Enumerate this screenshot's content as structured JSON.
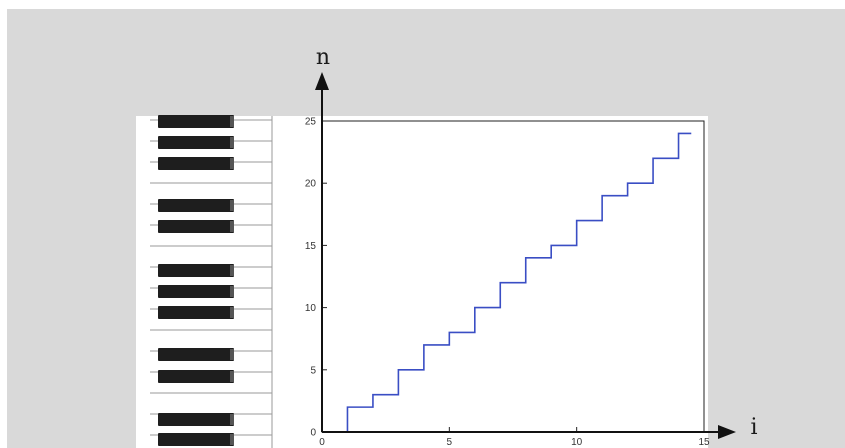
{
  "chart_data": {
    "type": "line",
    "step": true,
    "x": [
      1,
      2,
      3,
      4,
      5,
      6,
      7,
      8,
      9,
      10,
      11,
      12,
      13,
      14
    ],
    "y": [
      2,
      3,
      5,
      7,
      8,
      10,
      12,
      14,
      15,
      17,
      19,
      20,
      22,
      24
    ],
    "xlim": [
      0,
      15
    ],
    "ylim": [
      0,
      25
    ],
    "x_ticks": [
      0,
      5,
      10,
      15
    ],
    "y_ticks": [
      0,
      5,
      10,
      15,
      20,
      25
    ],
    "xlabel": "i",
    "ylabel": "n",
    "grid": false,
    "line_color": "#3a4ec4"
  },
  "colors": {
    "panel": "#d9d9d9",
    "black_key": "#1e1e1e",
    "white_key_line": "#9a9a9a"
  }
}
